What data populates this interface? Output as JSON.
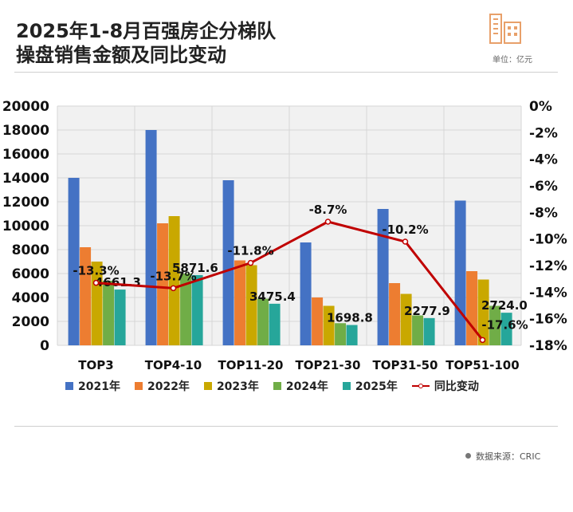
{
  "title_line1": "2025年1-8月百强房企分梯队",
  "title_line2": "操盘销售金额及同比变动",
  "unit": "单位：亿元",
  "source": "数据来源：CRIC",
  "colors": {
    "2021年": "#4472c4",
    "2022年": "#ed7d31",
    "2023年": "#c9a800",
    "2024年": "#70ad47",
    "2025年": "#26a69a",
    "line": "#c00000"
  },
  "chart_data": {
    "type": "bar",
    "categories": [
      "TOP3",
      "TOP4-10",
      "TOP11-20",
      "TOP21-30",
      "TOP31-50",
      "TOP51-100"
    ],
    "series": [
      {
        "name": "2021年",
        "values": [
          14000,
          18000,
          13800,
          8600,
          11400,
          12100
        ]
      },
      {
        "name": "2022年",
        "values": [
          8200,
          10200,
          7100,
          4000,
          5200,
          6200
        ]
      },
      {
        "name": "2023年",
        "values": [
          7000,
          10800,
          6700,
          3300,
          4300,
          5500
        ]
      },
      {
        "name": "2024年",
        "values": [
          5400,
          6000,
          3900,
          1850,
          2500,
          3300
        ]
      },
      {
        "name": "2025年",
        "values": [
          4661.3,
          5871.6,
          3475.4,
          1698.8,
          2277.9,
          2724.0
        ]
      }
    ],
    "value_labels": [
      "4661.3",
      "5871.6",
      "3475.4",
      "1698.8",
      "2277.9",
      "2724.0"
    ],
    "line_series": {
      "name": "同比变动",
      "values": [
        -13.3,
        -13.7,
        -11.8,
        -8.7,
        -10.2,
        -17.6
      ]
    },
    "line_labels": [
      "-13.3%",
      "-13.7%",
      "-11.8%",
      "-8.7%",
      "-10.2%",
      "-17.6%"
    ],
    "ylim": [
      0,
      20000
    ],
    "y_ticks": [
      "0",
      "2000",
      "4000",
      "6000",
      "8000",
      "10000",
      "12000",
      "14000",
      "16000",
      "18000",
      "20000"
    ],
    "y2lim": [
      -18,
      0
    ],
    "y2_ticks": [
      "0%",
      "-2%",
      "-4%",
      "-6%",
      "-8%",
      "-10%",
      "-12%",
      "-14%",
      "-16%",
      "-18%"
    ],
    "legend_position": "bottom",
    "grid": true
  }
}
